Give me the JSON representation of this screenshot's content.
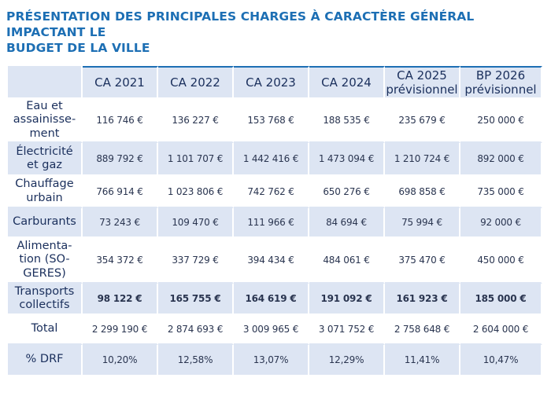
{
  "title_lines": [
    "PRÉSENTATION DES PRINCIPALES CHARGES À CARACTÈRE GÉNÉRAL IMPACTANT LE",
    "BUDGET DE LA VILLE"
  ],
  "colors": {
    "title": "#1d6fb4",
    "band": "#dde5f3",
    "text": "#1a2f5c"
  },
  "table": {
    "headers": [
      [
        "CA 2021"
      ],
      [
        "CA 2022"
      ],
      [
        "CA 2023"
      ],
      [
        "CA 2024"
      ],
      [
        "CA 2025",
        "prévisionnel"
      ],
      [
        "BP 2026",
        "prévisionnel"
      ]
    ],
    "rows": [
      {
        "label": [
          "Eau et",
          "assainisse-",
          "ment"
        ],
        "values": [
          "116 746 €",
          "136 227 €",
          "153 768 €",
          "188 535 €",
          "235 679 €",
          "250 000 €"
        ]
      },
      {
        "label": [
          "Électricité",
          "et gaz"
        ],
        "values": [
          "889 792 €",
          "1 101 707 €",
          "1 442 416 €",
          "1 473 094 €",
          "1 210 724 €",
          "892 000 €"
        ]
      },
      {
        "label": [
          "Chauffage",
          "urbain"
        ],
        "values": [
          "766 914 €",
          "1 023 806 €",
          "742 762 €",
          "650 276 €",
          "698 858 €",
          "735 000 €"
        ]
      },
      {
        "label": [
          "Carburants"
        ],
        "values": [
          "73 243 €",
          "109 470 €",
          "111 966 €",
          "84 694 €",
          "75 994 €",
          "92 000 €"
        ]
      },
      {
        "label": [
          "Alimenta-",
          "tion (SO-",
          "GERES)"
        ],
        "values": [
          "354 372 €",
          "337 729 €",
          "394 434 €",
          "484 061 €",
          "375 470 €",
          "450 000 €"
        ]
      },
      {
        "label": [
          "Transports",
          "collectifs"
        ],
        "values": [
          "98 122 €",
          "165 755 €",
          "164 619 €",
          "191 092 €",
          "161 923 €",
          "185 000 €"
        ]
      },
      {
        "label": [
          "Total"
        ],
        "values": [
          "2 299 190 €",
          "2 874 693 €",
          "3 009 965 €",
          "3 071 752 €",
          "2 758 648 €",
          "2 604 000 €"
        ]
      },
      {
        "label": [
          "% DRF"
        ],
        "values": [
          "10,20%",
          "12,58%",
          "13,07%",
          "12,29%",
          "11,41%",
          "10,47%"
        ]
      }
    ]
  }
}
